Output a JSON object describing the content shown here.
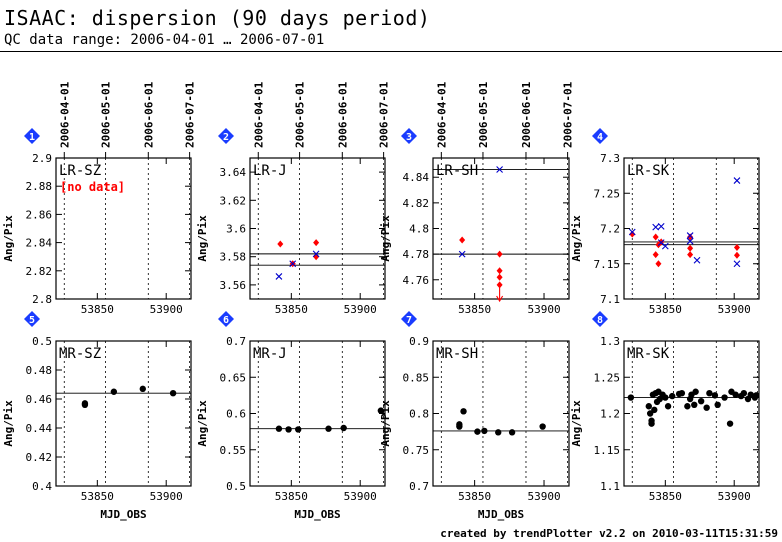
{
  "page": {
    "title": "ISAAC: dispersion (90 days period)",
    "subtitle": "QC data range: 2006-04-01 … 2006-07-01",
    "footer": "created by trendPlotter v2.2 on 2010-03-11T15:31:59"
  },
  "colors": {
    "red": "#ff0000",
    "blue": "#0000cc",
    "badge": "#1a3cff",
    "black": "#000000"
  },
  "chart_data": [
    {
      "type": "scatter",
      "panel": "1",
      "label": "LR-SZ",
      "no_data": "[no data]",
      "ylabel": "Ang/Pix",
      "xlabel": "",
      "xlim": [
        53820,
        53918
      ],
      "ylim": [
        2.8,
        2.9
      ],
      "yticks": [
        "2.8",
        "2.82",
        "2.84",
        "2.86",
        "2.88",
        "2.9"
      ],
      "ytick_values": [
        2.8,
        2.82,
        2.84,
        2.86,
        2.88,
        2.9
      ],
      "xticks": [
        53850,
        53900
      ],
      "date_ticks": [
        "2006-04-01",
        "2006-05-01",
        "2006-06-01",
        "2006-07-01"
      ],
      "date_mjd": [
        53826,
        53856,
        53887,
        53917
      ],
      "show_date_labels": true,
      "ref_lines": [],
      "series": []
    },
    {
      "type": "scatter",
      "panel": "2",
      "label": "LR-J",
      "ylabel": "Ang/Pix",
      "xlabel": "",
      "xlim": [
        53820,
        53918
      ],
      "ylim": [
        3.55,
        3.65
      ],
      "yticks": [
        "3.56",
        "3.58",
        "3.6",
        "3.62",
        "3.64"
      ],
      "ytick_values": [
        3.56,
        3.58,
        3.6,
        3.62,
        3.64
      ],
      "xticks": [
        53850,
        53900
      ],
      "date_ticks": [
        "2006-04-01",
        "2006-05-01",
        "2006-06-01",
        "2006-07-01"
      ],
      "date_mjd": [
        53826,
        53856,
        53887,
        53917
      ],
      "show_date_labels": true,
      "ref_lines": [
        3.582,
        3.574
      ],
      "series": [
        {
          "marker": "diamond",
          "color": "red",
          "points": [
            [
              53842,
              3.589
            ],
            [
              53851,
              3.575
            ],
            [
              53868,
              3.59
            ],
            [
              53868,
              3.58
            ]
          ]
        },
        {
          "marker": "x",
          "color": "blue",
          "points": [
            [
              53841,
              3.566
            ],
            [
              53851,
              3.575
            ],
            [
              53868,
              3.582
            ]
          ]
        }
      ]
    },
    {
      "type": "scatter",
      "panel": "3",
      "label": "LR-SH",
      "ylabel": "Ang/Pix",
      "xlabel": "",
      "xlim": [
        53820,
        53918
      ],
      "ylim": [
        4.745,
        4.855
      ],
      "yticks": [
        "4.76",
        "4.78",
        "4.8",
        "4.82",
        "4.84"
      ],
      "ytick_values": [
        4.76,
        4.78,
        4.8,
        4.82,
        4.84
      ],
      "xticks": [
        53850,
        53900
      ],
      "date_ticks": [
        "2006-04-01",
        "2006-05-01",
        "2006-06-01",
        "2006-07-01"
      ],
      "date_mjd": [
        53826,
        53856,
        53887,
        53917
      ],
      "show_date_labels": true,
      "ref_lines": [
        4.846,
        4.78
      ],
      "series": [
        {
          "marker": "diamond",
          "color": "red",
          "points": [
            [
              53841,
              4.791
            ],
            [
              53868,
              4.78
            ],
            [
              53868,
              4.767
            ],
            [
              53868,
              4.762
            ],
            [
              53868,
              4.756
            ]
          ]
        },
        {
          "marker": "x",
          "color": "blue",
          "points": [
            [
              53841,
              4.78
            ],
            [
              53868,
              4.846
            ]
          ]
        }
      ],
      "arrows": [
        {
          "x": 53868,
          "color": "red"
        }
      ]
    },
    {
      "type": "scatter",
      "panel": "4",
      "label": "LR-SK",
      "ylabel": "Ang/Pix",
      "xlabel": "",
      "xlim": [
        53820,
        53918
      ],
      "ylim": [
        7.1,
        7.3
      ],
      "yticks": [
        "7.1",
        "7.15",
        "7.2",
        "7.25",
        "7.3"
      ],
      "ytick_values": [
        7.1,
        7.15,
        7.2,
        7.25,
        7.3
      ],
      "xticks": [
        53850,
        53900
      ],
      "date_ticks": [],
      "date_mjd": [
        53826,
        53856,
        53887,
        53917
      ],
      "show_date_labels": false,
      "ref_lines": [
        7.181,
        7.177
      ],
      "series": [
        {
          "marker": "diamond",
          "color": "red",
          "points": [
            [
              53826,
              7.192
            ],
            [
              53843,
              7.188
            ],
            [
              53843,
              7.163
            ],
            [
              53845,
              7.177
            ],
            [
              53845,
              7.15
            ],
            [
              53847,
              7.181
            ],
            [
              53868,
              7.188
            ],
            [
              53868,
              7.172
            ],
            [
              53868,
              7.163
            ],
            [
              53902,
              7.173
            ],
            [
              53902,
              7.162
            ]
          ]
        },
        {
          "marker": "x",
          "color": "blue",
          "points": [
            [
              53826,
              7.195
            ],
            [
              53843,
              7.202
            ],
            [
              53847,
              7.203
            ],
            [
              53847,
              7.18
            ],
            [
              53850,
              7.175
            ],
            [
              53868,
              7.19
            ],
            [
              53868,
              7.182
            ],
            [
              53873,
              7.155
            ],
            [
              53902,
              7.268
            ],
            [
              53902,
              7.15
            ]
          ]
        }
      ]
    },
    {
      "type": "scatter",
      "panel": "5",
      "label": "MR-SZ",
      "ylabel": "Ang/Pix",
      "xlabel": "MJD_OBS",
      "xlim": [
        53820,
        53918
      ],
      "ylim": [
        0.4,
        0.5
      ],
      "yticks": [
        "0.4",
        "0.42",
        "0.44",
        "0.46",
        "0.48",
        "0.5"
      ],
      "ytick_values": [
        0.4,
        0.42,
        0.44,
        0.46,
        0.48,
        0.5
      ],
      "xticks": [
        53850,
        53900
      ],
      "xtick_labels": [
        "53850",
        "53900"
      ],
      "date_ticks": [],
      "date_mjd": [
        53826,
        53856,
        53887,
        53917
      ],
      "show_date_labels": false,
      "ref_lines": [
        0.464
      ],
      "series": [
        {
          "marker": "dot",
          "color": "black",
          "points": [
            [
              53841,
              0.457
            ],
            [
              53841,
              0.456
            ],
            [
              53862,
              0.465
            ],
            [
              53883,
              0.467
            ],
            [
              53905,
              0.464
            ]
          ]
        }
      ]
    },
    {
      "type": "scatter",
      "panel": "6",
      "label": "MR-J",
      "ylabel": "Ang/Pix",
      "xlabel": "MJD_OBS",
      "xlim": [
        53820,
        53918
      ],
      "ylim": [
        0.5,
        0.7
      ],
      "yticks": [
        "0.5",
        "0.55",
        "0.6",
        "0.65",
        "0.7"
      ],
      "ytick_values": [
        0.5,
        0.55,
        0.6,
        0.65,
        0.7
      ],
      "xticks": [
        53850,
        53900
      ],
      "xtick_labels": [
        "53850",
        "53900"
      ],
      "date_ticks": [],
      "date_mjd": [
        53826,
        53856,
        53887,
        53917
      ],
      "show_date_labels": false,
      "ref_lines": [
        0.579
      ],
      "series": [
        {
          "marker": "dot",
          "color": "black",
          "points": [
            [
              53841,
              0.579
            ],
            [
              53848,
              0.578
            ],
            [
              53855,
              0.578
            ],
            [
              53877,
              0.579
            ],
            [
              53888,
              0.58
            ],
            [
              53915,
              0.604
            ]
          ]
        }
      ]
    },
    {
      "type": "scatter",
      "panel": "7",
      "label": "MR-SH",
      "ylabel": "Ang/Pix",
      "xlabel": "MJD_OBS",
      "xlim": [
        53820,
        53918
      ],
      "ylim": [
        0.7,
        0.9
      ],
      "yticks": [
        "0.7",
        "0.75",
        "0.8",
        "0.85",
        "0.9"
      ],
      "ytick_values": [
        0.7,
        0.75,
        0.8,
        0.85,
        0.9
      ],
      "xticks": [
        53850,
        53900
      ],
      "xtick_labels": [
        "53850",
        "53900"
      ],
      "date_ticks": [],
      "date_mjd": [
        53826,
        53856,
        53887,
        53917
      ],
      "show_date_labels": false,
      "ref_lines": [
        0.776
      ],
      "series": [
        {
          "marker": "dot",
          "color": "black",
          "points": [
            [
              53839,
              0.785
            ],
            [
              53839,
              0.782
            ],
            [
              53842,
              0.803
            ],
            [
              53852,
              0.775
            ],
            [
              53857,
              0.776
            ],
            [
              53867,
              0.774
            ],
            [
              53877,
              0.774
            ],
            [
              53899,
              0.782
            ]
          ]
        }
      ]
    },
    {
      "type": "scatter",
      "panel": "8",
      "label": "MR-SK",
      "ylabel": "Ang/Pix",
      "xlabel": "",
      "xlim": [
        53820,
        53918
      ],
      "ylim": [
        1.1,
        1.3
      ],
      "yticks": [
        "1.1",
        "1.15",
        "1.2",
        "1.25",
        "1.3"
      ],
      "ytick_values": [
        1.1,
        1.15,
        1.2,
        1.25,
        1.3
      ],
      "xticks": [
        53850,
        53900
      ],
      "xtick_labels": [
        "53850",
        "53900"
      ],
      "date_ticks": [],
      "date_mjd": [
        53826,
        53856,
        53887,
        53917
      ],
      "show_date_labels": false,
      "ref_lines": [
        1.222
      ],
      "series": [
        {
          "marker": "dot",
          "color": "black",
          "points": [
            [
              53825,
              1.222
            ],
            [
              53838,
              1.21
            ],
            [
              53839,
              1.2
            ],
            [
              53840,
              1.19
            ],
            [
              53840,
              1.186
            ],
            [
              53841,
              1.226
            ],
            [
              53842,
              1.205
            ],
            [
              53843,
              1.228
            ],
            [
              53844,
              1.216
            ],
            [
              53845,
              1.23
            ],
            [
              53846,
              1.22
            ],
            [
              53848,
              1.226
            ],
            [
              53850,
              1.222
            ],
            [
              53852,
              1.21
            ],
            [
              53855,
              1.224
            ],
            [
              53860,
              1.227
            ],
            [
              53862,
              1.228
            ],
            [
              53866,
              1.21
            ],
            [
              53868,
              1.22
            ],
            [
              53869,
              1.226
            ],
            [
              53871,
              1.212
            ],
            [
              53872,
              1.23
            ],
            [
              53876,
              1.217
            ],
            [
              53880,
              1.208
            ],
            [
              53882,
              1.228
            ],
            [
              53886,
              1.225
            ],
            [
              53888,
              1.212
            ],
            [
              53893,
              1.222
            ],
            [
              53897,
              1.186
            ],
            [
              53898,
              1.23
            ],
            [
              53901,
              1.226
            ],
            [
              53905,
              1.224
            ],
            [
              53907,
              1.228
            ],
            [
              53910,
              1.22
            ],
            [
              53912,
              1.226
            ],
            [
              53915,
              1.222
            ],
            [
              53916,
              1.225
            ]
          ]
        }
      ]
    }
  ]
}
